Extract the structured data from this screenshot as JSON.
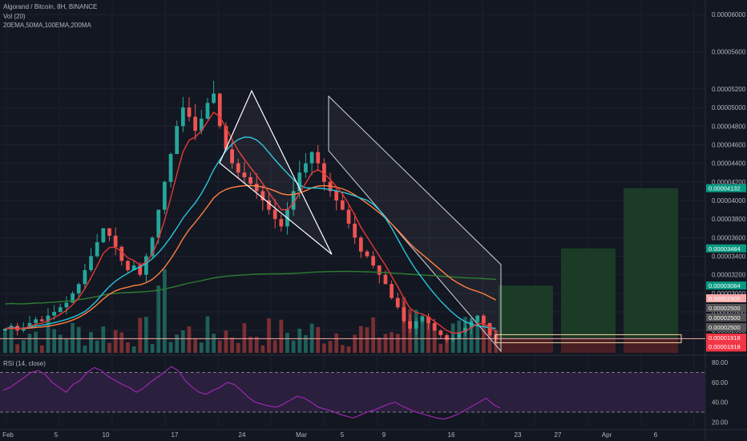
{
  "header": {
    "symbol": "Algorand / Bitcoin, 8H, BINANCE",
    "volume": "Vol (20)",
    "emas": "20EMA,50MA,100EMA,200MA"
  },
  "rsi_pane": {
    "label": "RSI (14, close)"
  },
  "colors": {
    "background": "#131722",
    "grid": "#1e2230",
    "up": "#26a69a",
    "down": "#ef5350",
    "ema20": "#e53935",
    "ma50": "#26c6da",
    "ema100": "#ff7f3f",
    "ma200": "#2e7d32",
    "rsi": "#9c27b0",
    "rsi_band": "#2a1f3d",
    "profit": "#1b3b26",
    "loss": "#4a1f24",
    "support": "#f7a8a8"
  },
  "chart_data": [
    {
      "type": "candlestick",
      "pane": "price",
      "ylim": [
        2.36e-05,
        6.14e-05
      ],
      "yticks": [
        "0.00006000",
        "0.00005600",
        "0.00005200",
        "0.00005000",
        "0.00004800",
        "0.00004600",
        "0.00004400",
        "0.00004200",
        "0.00004000",
        "0.00003800",
        "0.00003600",
        "0.00003400",
        "0.00003200",
        "0.00003000",
        "0.00002800",
        "0.00002600"
      ],
      "xticks": [
        "Feb",
        "5",
        "10",
        "17",
        "24",
        "Mar",
        "5",
        "9",
        "16",
        "23",
        "27",
        "Apr",
        "6"
      ],
      "price_labels": [
        {
          "text": "0.00004132",
          "color": "#089981"
        },
        {
          "text": "0.00003484",
          "color": "#089981"
        },
        {
          "text": "0.00003084",
          "color": "#089981"
        },
        {
          "text": "0.00002512",
          "color": "#f23645"
        },
        {
          "text": "07:26:03",
          "color": "#f23645"
        },
        {
          "text": "0.00002500",
          "color": "#f7a8a8"
        },
        {
          "text": "0.00002500",
          "color": "#555"
        },
        {
          "text": "0.00002500",
          "color": "#555"
        },
        {
          "text": "0.00002500",
          "color": "#555"
        },
        {
          "text": "0.00001918",
          "color": "#f23645"
        },
        {
          "text": "0.00001918",
          "color": "#f23645"
        }
      ],
      "close_series": [
        2.62e-05,
        2.65e-05,
        2.6e-05,
        2.63e-05,
        2.68e-05,
        2.72e-05,
        2.7e-05,
        2.76e-05,
        2.8e-05,
        2.85e-05,
        2.9e-05,
        3e-05,
        3.1e-05,
        3.25e-05,
        3.4e-05,
        3.55e-05,
        3.7e-05,
        3.62e-05,
        3.5e-05,
        3.35e-05,
        3.25e-05,
        3.3e-05,
        3.2e-05,
        3.4e-05,
        3.6e-05,
        3.9e-05,
        4.2e-05,
        4.5e-05,
        4.8e-05,
        5e-05,
        4.9e-05,
        4.75e-05,
        4.88e-05,
        5.05e-05,
        5.15e-05,
        4.8e-05,
        4.55e-05,
        4.4e-05,
        4.3e-05,
        4.25e-05,
        4.18e-05,
        4.1e-05,
        4e-05,
        3.9e-05,
        3.8e-05,
        3.72e-05,
        3.9e-05,
        4.1e-05,
        4.3e-05,
        4.4e-05,
        4.52e-05,
        4.4e-05,
        4.2e-05,
        4.1e-05,
        4e-05,
        3.9e-05,
        3.75e-05,
        3.6e-05,
        3.45e-05,
        3.4e-05,
        3.3e-05,
        3.2e-05,
        3.1e-05,
        2.95e-05,
        2.85e-05,
        2.7e-05,
        2.62e-05,
        2.7e-05,
        2.75e-05,
        2.68e-05,
        2.6e-05,
        2.55e-05,
        2.5e-05,
        2.52e-05,
        2.58e-05,
        2.63e-05,
        2.7e-05,
        2.76e-05,
        2.68e-05,
        2.55e-05,
        2.51e-05
      ],
      "annotations": {
        "rising_wedge_apex": 5.18e-05,
        "rising_wedge_base": 3.42e-05,
        "trade_entry": 2.512e-05,
        "take_profits": [
          3.084e-05,
          3.484e-05,
          4.132e-05
        ],
        "stop_loss": 1.918e-05
      }
    },
    {
      "type": "bar",
      "pane": "volume",
      "series": [
        {
          "name": "Vol (20)"
        }
      ]
    },
    {
      "type": "line",
      "pane": "rsi",
      "ylim": [
        17,
        85
      ],
      "yticks": [
        "80.00",
        "60.00",
        "40.00",
        "20.00"
      ],
      "bands": [
        30,
        70
      ],
      "rsi_values": [
        52,
        55,
        60,
        65,
        70,
        72,
        68,
        60,
        55,
        50,
        58,
        62,
        70,
        75,
        72,
        66,
        62,
        58,
        55,
        50,
        54,
        60,
        65,
        70,
        76,
        72,
        62,
        55,
        50,
        48,
        52,
        55,
        60,
        58,
        52,
        45,
        40,
        38,
        36,
        35,
        38,
        42,
        46,
        44,
        40,
        35,
        33,
        31,
        28,
        26,
        24,
        27,
        30,
        32,
        35,
        38,
        40,
        36,
        33,
        30,
        28,
        26,
        24,
        23,
        25,
        28,
        32,
        36,
        40,
        44,
        38,
        34
      ]
    }
  ]
}
